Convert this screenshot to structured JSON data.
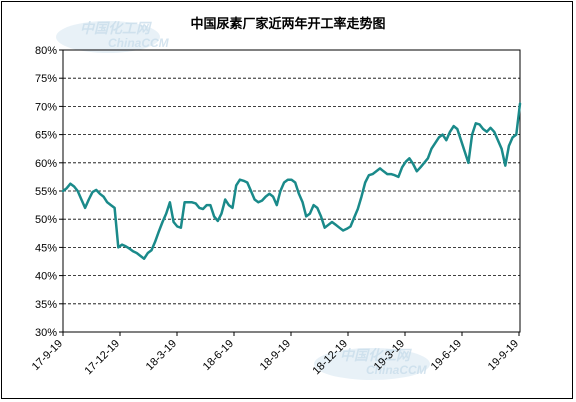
{
  "chart_data": {
    "type": "line",
    "title": "中国尿素厂家近两年开工率走势图",
    "xlabel": "",
    "ylabel": "",
    "ylim": [
      0.3,
      0.8
    ],
    "y_ticks": [
      "30%",
      "35%",
      "40%",
      "45%",
      "50%",
      "55%",
      "60%",
      "65%",
      "70%",
      "75%",
      "80%"
    ],
    "x_ticks": [
      "17-9-19",
      "17-12-19",
      "18-3-19",
      "18-6-19",
      "18-9-19",
      "18-12-19",
      "19-3-19",
      "19-6-19",
      "19-9-19"
    ],
    "grid": true,
    "line_color": "#1a8a8a",
    "series": [
      {
        "values": [
          0.55,
          0.555,
          0.563,
          0.558,
          0.55,
          0.535,
          0.52,
          0.535,
          0.548,
          0.552,
          0.545,
          0.54,
          0.53,
          0.525,
          0.52,
          0.45,
          0.455,
          0.452,
          0.448,
          0.443,
          0.44,
          0.435,
          0.43,
          0.44,
          0.445,
          0.46,
          0.478,
          0.495,
          0.51,
          0.53,
          0.495,
          0.487,
          0.485,
          0.53,
          0.53,
          0.53,
          0.528,
          0.52,
          0.518,
          0.525,
          0.525,
          0.505,
          0.497,
          0.51,
          0.535,
          0.525,
          0.52,
          0.56,
          0.57,
          0.568,
          0.565,
          0.55,
          0.535,
          0.53,
          0.533,
          0.54,
          0.545,
          0.54,
          0.525,
          0.55,
          0.565,
          0.57,
          0.57,
          0.565,
          0.545,
          0.53,
          0.505,
          0.51,
          0.525,
          0.52,
          0.505,
          0.485,
          0.49,
          0.495,
          0.49,
          0.485,
          0.48,
          0.483,
          0.487,
          0.503,
          0.518,
          0.54,
          0.565,
          0.578,
          0.58,
          0.585,
          0.59,
          0.585,
          0.58,
          0.58,
          0.578,
          0.575,
          0.592,
          0.602,
          0.608,
          0.598,
          0.585,
          0.592,
          0.6,
          0.608,
          0.625,
          0.635,
          0.645,
          0.65,
          0.64,
          0.655,
          0.665,
          0.66,
          0.64,
          0.62,
          0.6,
          0.65,
          0.67,
          0.668,
          0.66,
          0.655,
          0.662,
          0.655,
          0.64,
          0.625,
          0.595,
          0.63,
          0.645,
          0.65,
          0.705
        ]
      }
    ]
  },
  "watermarks": [
    "中国化工网",
    "ChinaCCM"
  ]
}
